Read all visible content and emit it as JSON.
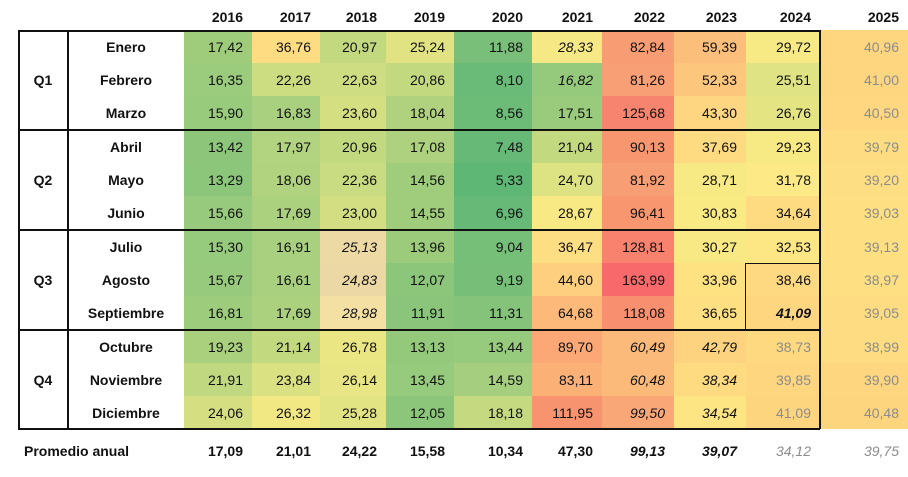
{
  "years": [
    "2016",
    "2017",
    "2018",
    "2019",
    "2020",
    "2021",
    "2022",
    "2023",
    "2024",
    "2025"
  ],
  "quarters": [
    "Q1",
    "Q2",
    "Q3",
    "Q4"
  ],
  "months": [
    "Enero",
    "Febrero",
    "Marzo",
    "Abril",
    "Mayo",
    "Junio",
    "Julio",
    "Agosto",
    "Septiembre",
    "Octubre",
    "Noviembre",
    "Diciembre"
  ],
  "values": [
    [
      "17,42",
      "36,76",
      "20,97",
      "25,24",
      "11,88",
      "28,33",
      "82,84",
      "59,39",
      "29,72",
      "40,96"
    ],
    [
      "16,35",
      "22,26",
      "22,63",
      "20,86",
      "8,10",
      "16,82",
      "81,26",
      "52,33",
      "25,51",
      "41,00"
    ],
    [
      "15,90",
      "16,83",
      "23,60",
      "18,04",
      "8,56",
      "17,51",
      "125,68",
      "43,30",
      "26,76",
      "40,50"
    ],
    [
      "13,42",
      "17,97",
      "20,96",
      "17,08",
      "7,48",
      "21,04",
      "90,13",
      "37,69",
      "29,23",
      "39,79"
    ],
    [
      "13,29",
      "18,06",
      "22,36",
      "14,56",
      "5,33",
      "24,70",
      "81,92",
      "28,71",
      "31,78",
      "39,20"
    ],
    [
      "15,66",
      "17,69",
      "23,00",
      "14,55",
      "6,96",
      "28,67",
      "96,41",
      "30,83",
      "34,64",
      "39,03"
    ],
    [
      "15,30",
      "16,91",
      "25,13",
      "13,96",
      "9,04",
      "36,47",
      "128,81",
      "30,27",
      "32,53",
      "39,13"
    ],
    [
      "15,67",
      "16,61",
      "24,83",
      "12,07",
      "9,19",
      "44,60",
      "163,99",
      "33,96",
      "38,46",
      "38,97"
    ],
    [
      "16,81",
      "17,69",
      "28,98",
      "11,91",
      "11,31",
      "64,68",
      "118,08",
      "36,65",
      "41,09",
      "39,05"
    ],
    [
      "19,23",
      "21,14",
      "26,78",
      "13,13",
      "13,44",
      "89,70",
      "60,49",
      "42,79",
      "38,73",
      "38,99"
    ],
    [
      "21,91",
      "23,84",
      "26,14",
      "13,45",
      "14,59",
      "83,11",
      "60,48",
      "38,34",
      "39,85",
      "39,90"
    ],
    [
      "24,06",
      "26,32",
      "25,28",
      "12,05",
      "18,18",
      "111,95",
      "99,50",
      "34,54",
      "41,09",
      "40,48"
    ]
  ],
  "styles": [
    [
      "n",
      "n",
      "n",
      "n",
      "n",
      "i",
      "n",
      "n",
      "n",
      "g"
    ],
    [
      "n",
      "n",
      "n",
      "n",
      "n",
      "i",
      "n",
      "n",
      "n",
      "g"
    ],
    [
      "n",
      "n",
      "n",
      "n",
      "n",
      "n",
      "n",
      "n",
      "n",
      "g"
    ],
    [
      "n",
      "n",
      "n",
      "n",
      "n",
      "n",
      "n",
      "n",
      "n",
      "g"
    ],
    [
      "n",
      "n",
      "n",
      "n",
      "n",
      "n",
      "n",
      "n",
      "n",
      "g"
    ],
    [
      "n",
      "n",
      "n",
      "n",
      "n",
      "n",
      "n",
      "n",
      "n",
      "g"
    ],
    [
      "n",
      "n",
      "i",
      "n",
      "n",
      "n",
      "n",
      "n",
      "n",
      "g"
    ],
    [
      "n",
      "n",
      "i",
      "n",
      "n",
      "n",
      "n",
      "n",
      "n",
      "g"
    ],
    [
      "n",
      "n",
      "i",
      "n",
      "n",
      "n",
      "n",
      "n",
      "bi",
      "g"
    ],
    [
      "n",
      "n",
      "n",
      "n",
      "n",
      "n",
      "i",
      "i",
      "g",
      "g"
    ],
    [
      "n",
      "n",
      "n",
      "n",
      "n",
      "n",
      "i",
      "i",
      "g",
      "g"
    ],
    [
      "n",
      "n",
      "n",
      "n",
      "n",
      "n",
      "i",
      "i",
      "g",
      "g"
    ]
  ],
  "colors": [
    [
      "#9fcc7a",
      "#fedd82",
      "#c2d980",
      "#e1e383",
      "#79bf79",
      "#f6e884",
      "#f79c73",
      "#fbbe7b",
      "#f7e984",
      "#fed680"
    ],
    [
      "#9bcb7c",
      "#cbdc81",
      "#cedd81",
      "#c3d980",
      "#6bbb78",
      "#95c97c",
      "#f89f75",
      "#fcc77d",
      "#dfe383",
      "#fed680"
    ],
    [
      "#99cb7c",
      "#a9d07e",
      "#d4df82",
      "#b0d27f",
      "#6cbc78",
      "#9acb7c",
      "#f7846e",
      "#fed580",
      "#e4e483",
      "#fed780"
    ],
    [
      "#8dc67b",
      "#b2d37f",
      "#c2d980",
      "#add17e",
      "#67b977",
      "#c3d980",
      "#f8976f",
      "#fedb81",
      "#f7e984",
      "#fedd82"
    ],
    [
      "#8cc67b",
      "#b1d37f",
      "#cadc81",
      "#9fcd7c",
      "#5fb776",
      "#dde283",
      "#f89e74",
      "#f7e984",
      "#fde985",
      "#fede82"
    ],
    [
      "#97ca7c",
      "#abd17e",
      "#d2de81",
      "#9fcd7c",
      "#66b977",
      "#f8e984",
      "#f89670",
      "#faea84",
      "#fedb81",
      "#fedf82"
    ],
    [
      "#96ca7c",
      "#a9d07f",
      "#ecd9a4",
      "#9ccb7c",
      "#76bf79",
      "#fede82",
      "#f8826d",
      "#f9e984",
      "#fce784",
      "#fee083"
    ],
    [
      "#97ca7c",
      "#a8d07f",
      "#ecd8a4",
      "#8bc67b",
      "#77bf79",
      "#fdcf7f",
      "#f8696b",
      "#fee282",
      "#fed981",
      "#fee082"
    ],
    [
      "#9dcc7c",
      "#abd17e",
      "#f5e0a4",
      "#8ac57b",
      "#85c37a",
      "#fdb97a",
      "#f8906f",
      "#fedf82",
      "#fed680",
      "#fedd82"
    ],
    [
      "#aad07e",
      "#c3d980",
      "#ebe684",
      "#94c97c",
      "#96ca7c",
      "#fba876",
      "#fbba79",
      "#fed37f",
      "#fed97f",
      "#fedd82"
    ],
    [
      "#c0d880",
      "#d9e182",
      "#e8e584",
      "#96ca7c",
      "#a5cf7e",
      "#fbb075",
      "#fbba79",
      "#fedb81",
      "#fed680",
      "#fed680"
    ],
    [
      "#d5df82",
      "#f1e884",
      "#e2e383",
      "#8bc67b",
      "#c5da80",
      "#f8936f",
      "#f9a777",
      "#fde584",
      "#fed57f",
      "#fed57f"
    ]
  ],
  "footer": {
    "label": "Promedio anual",
    "values": [
      "17,09",
      "21,01",
      "24,22",
      "15,58",
      "10,34",
      "47,30",
      "99,13",
      "39,07",
      "34,12",
      "39,75"
    ],
    "styles": [
      "b",
      "b",
      "b",
      "b",
      "b",
      "b",
      "bi",
      "bi",
      "gi",
      "gi"
    ]
  }
}
